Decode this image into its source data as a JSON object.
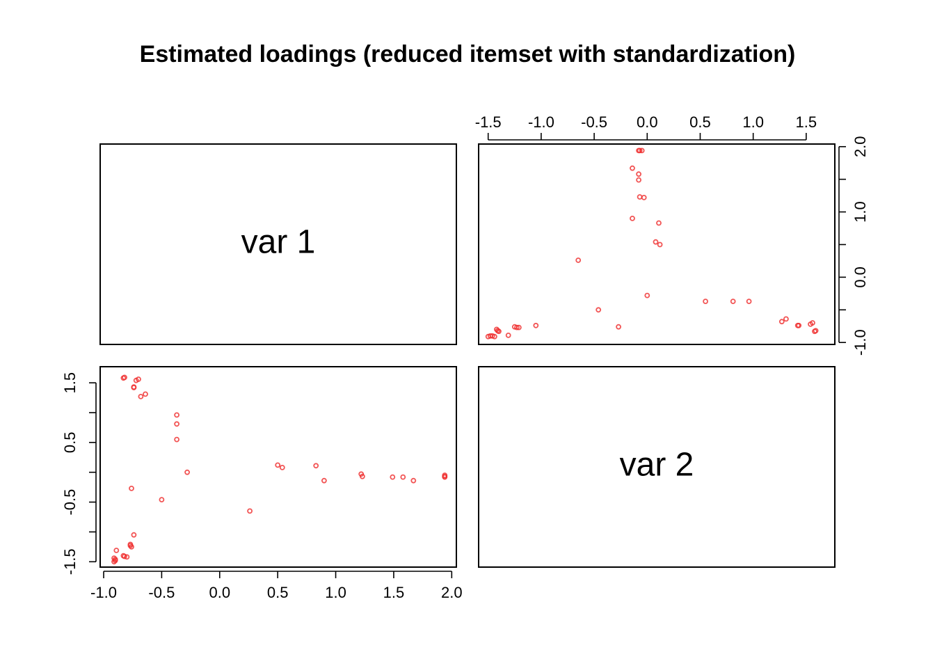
{
  "chart_data": {
    "type": "scatter",
    "title": "Estimated loadings (reduced itemset with standardization)",
    "variables": [
      "var 1",
      "var 2"
    ],
    "ticks": {
      "var1": [
        -1.0,
        -0.5,
        0.0,
        0.5,
        1.0,
        1.5,
        2.0
      ],
      "var1_labels": [
        "-1.0",
        "-0.5",
        "0.0",
        "0.5",
        "1.0",
        "1.5",
        "2.0"
      ],
      "var2": [
        -1.5,
        -1.0,
        -0.5,
        0.0,
        0.5,
        1.0,
        1.5
      ],
      "var2_labels": [
        "-1.5",
        "-1.0",
        "-0.5",
        "0.0",
        "0.5",
        "1.0",
        "1.5"
      ]
    },
    "ranges": {
      "var1": [
        -1.03,
        2.04
      ],
      "var2": [
        -1.59,
        1.77
      ]
    },
    "series": [
      {
        "x": [
          -0.9,
          -0.91,
          -0.9,
          -0.91,
          -0.89,
          -0.83,
          -0.82,
          -0.8,
          -0.77,
          -0.77,
          -0.76,
          -0.74,
          -0.5,
          -0.76,
          -0.74,
          -0.74,
          -0.72,
          -0.68,
          -0.64,
          -0.7,
          -0.83,
          -0.82,
          -0.37,
          -0.37,
          -0.37,
          -0.28,
          0.26,
          0.5,
          0.54,
          0.83,
          0.9,
          1.22,
          1.23,
          1.49,
          1.58,
          1.67,
          1.94,
          1.94,
          1.94
        ],
        "y": [
          -1.48,
          -1.44,
          -1.46,
          -1.5,
          -1.31,
          -1.4,
          -1.41,
          -1.42,
          -1.21,
          -1.23,
          -1.25,
          -1.05,
          -0.46,
          -0.27,
          1.42,
          1.43,
          1.54,
          1.27,
          1.31,
          1.56,
          1.58,
          1.59,
          0.96,
          0.81,
          0.55,
          0.0,
          -0.65,
          0.12,
          0.08,
          0.11,
          -0.14,
          -0.03,
          -0.07,
          -0.08,
          -0.08,
          -0.14,
          -0.05,
          -0.07,
          -0.08
        ],
        "color": "#ef2b2b"
      }
    ],
    "grid": false
  }
}
